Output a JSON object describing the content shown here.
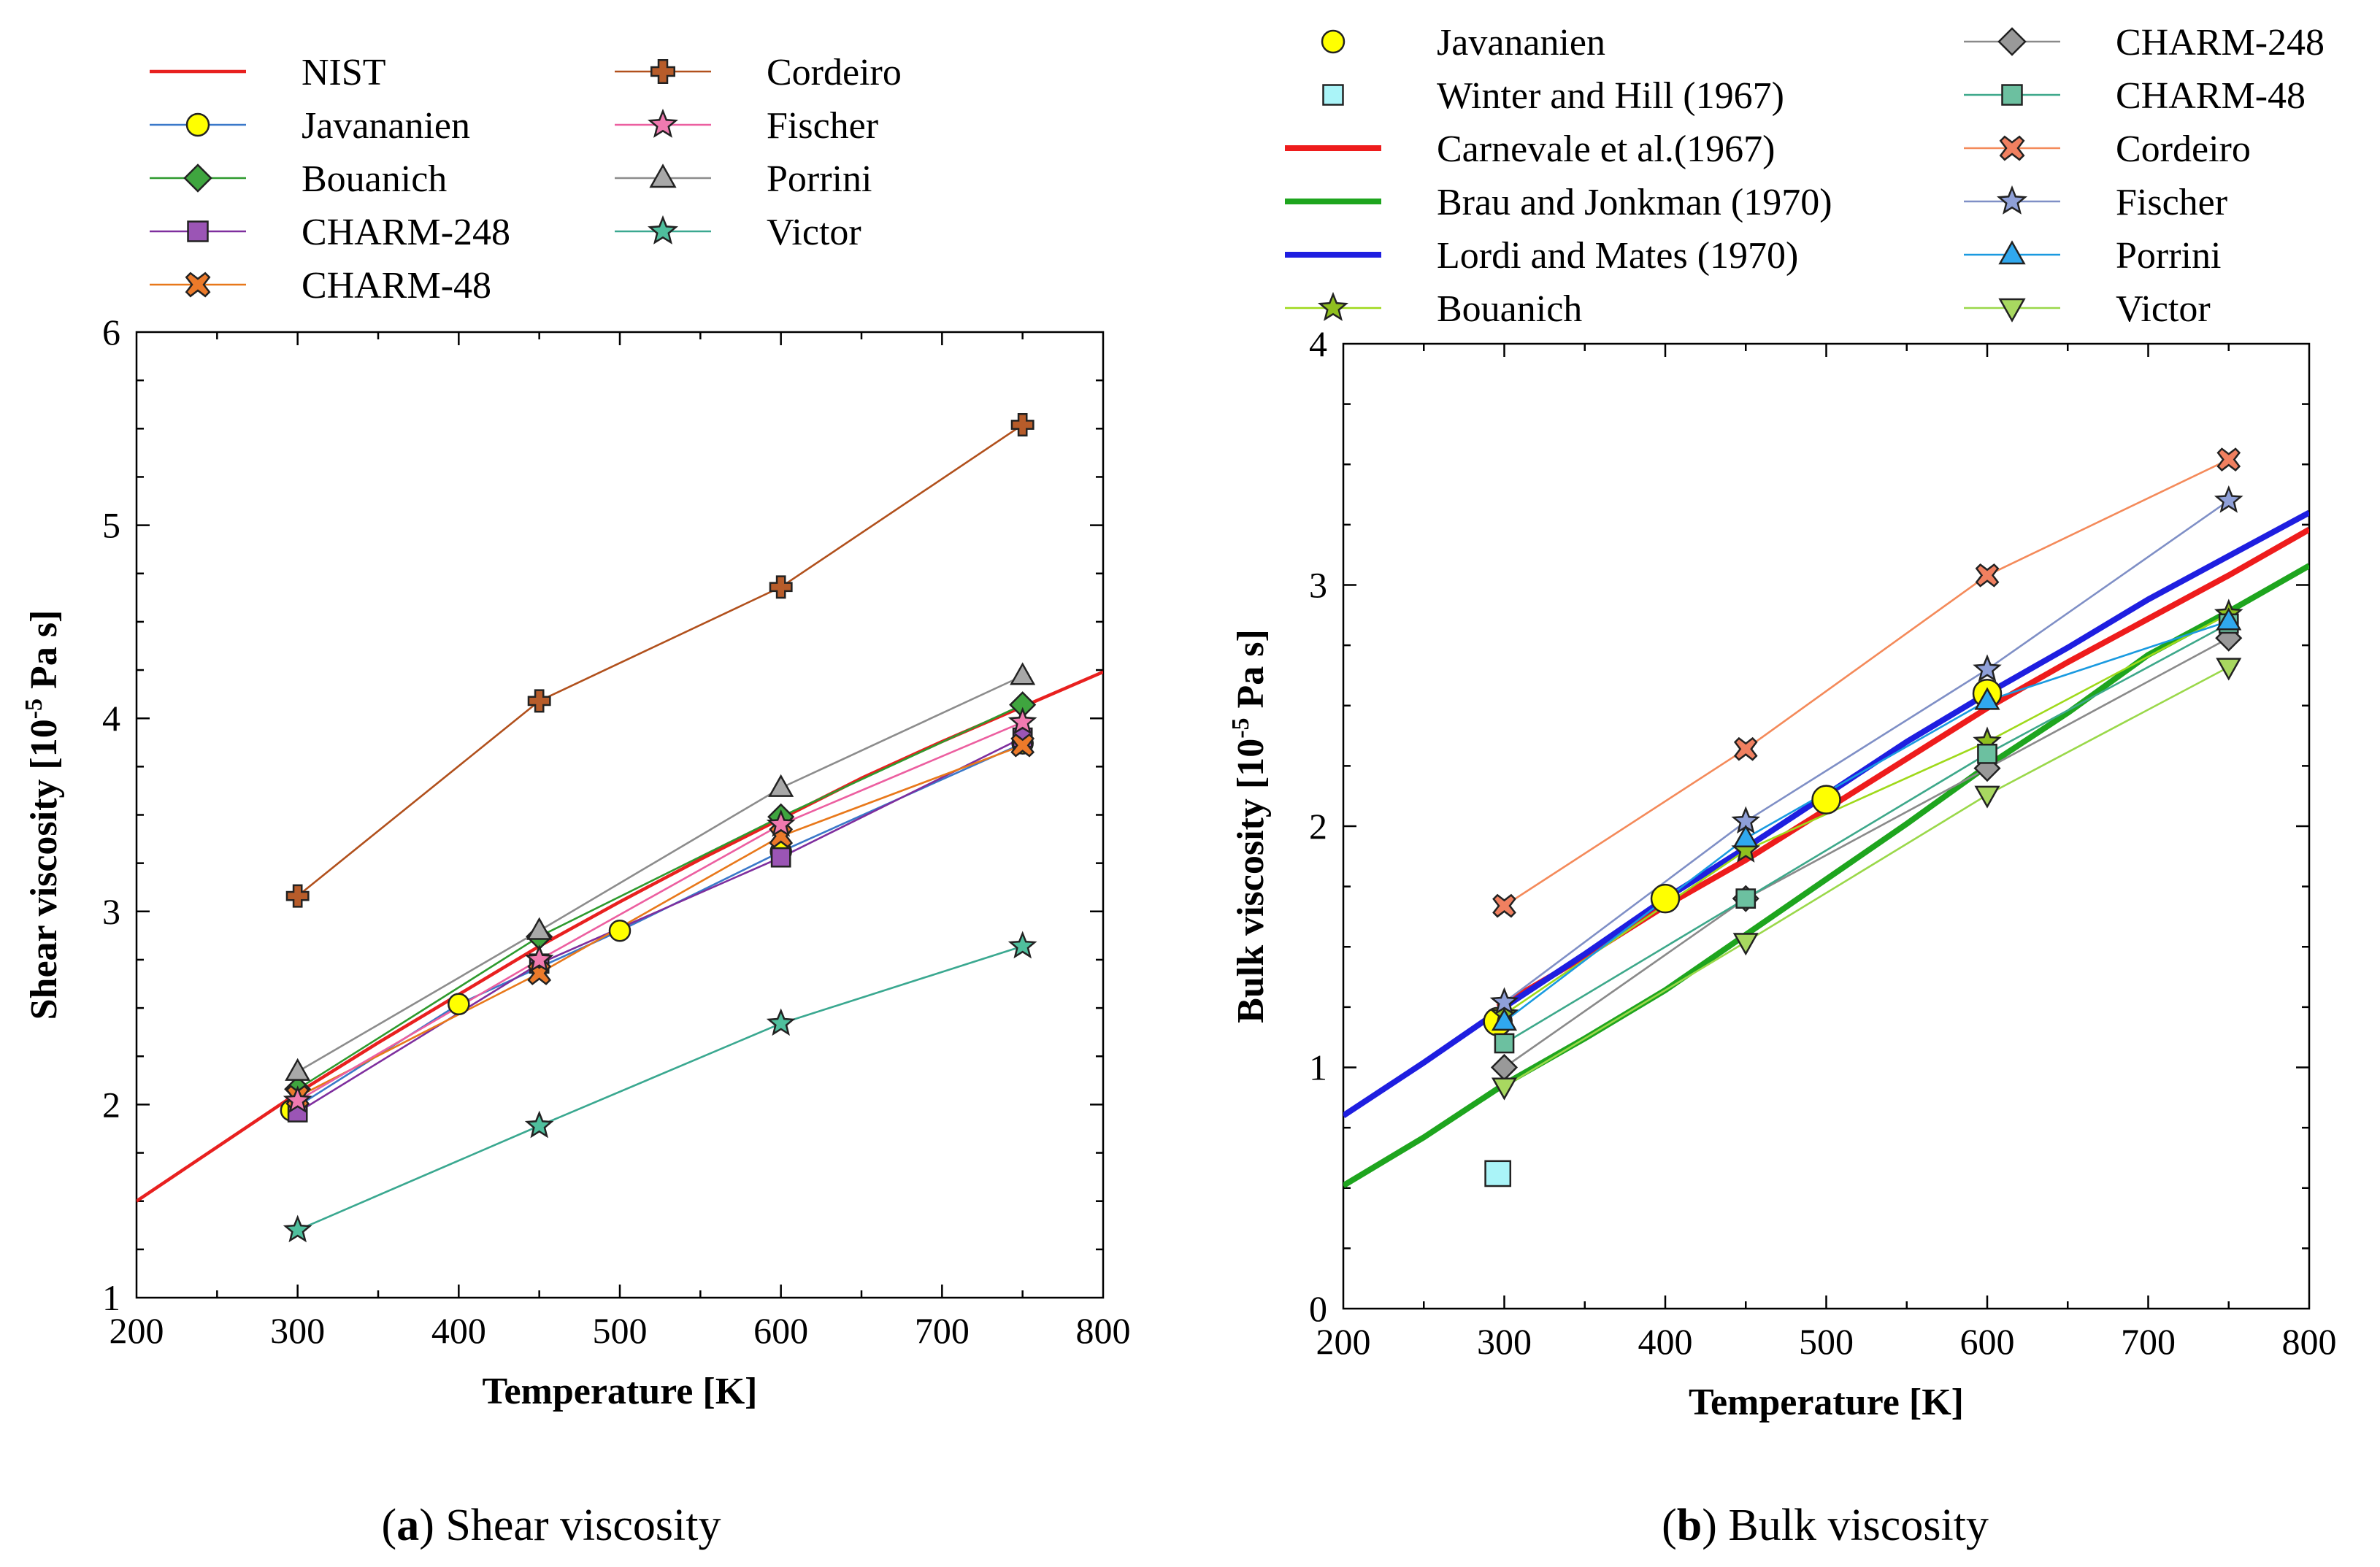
{
  "chart_data": [
    {
      "type": "line",
      "panel_label": "a",
      "caption": "Shear viscosity",
      "xlabel": "Temperature [K]",
      "ylabel": {
        "prefix": "Shear viscosity [10",
        "exponent": "-5",
        "suffix": " Pa s]"
      },
      "xlim": [
        200,
        800
      ],
      "ylim": [
        1,
        6
      ],
      "xticks": [
        200,
        300,
        400,
        500,
        600,
        700,
        800
      ],
      "yticks": [
        1,
        2,
        3,
        4,
        5,
        6
      ],
      "legend_columns": 2,
      "series": [
        {
          "name": "NIST",
          "color": "#e8201f",
          "marker": "none",
          "line_weight": "medium",
          "x": [
            200,
            250,
            300,
            350,
            400,
            450,
            500,
            550,
            600,
            650,
            700,
            750,
            800
          ],
          "y": [
            1.5,
            1.78,
            2.06,
            2.32,
            2.57,
            2.82,
            3.05,
            3.27,
            3.48,
            3.69,
            3.88,
            4.06,
            4.24
          ]
        },
        {
          "name": "Javananien",
          "color": "#3a78c9",
          "marker": "circle",
          "marker_fill": "#ffff00",
          "x": [
            296,
            400,
            500,
            600,
            750
          ],
          "y": [
            1.97,
            2.52,
            2.9,
            3.31,
            3.87
          ]
        },
        {
          "name": "Bouanich",
          "color": "#2e9a2e",
          "marker": "diamond",
          "marker_fill": "#3fa53f",
          "x": [
            300,
            450,
            600,
            750
          ],
          "y": [
            2.08,
            2.87,
            3.49,
            4.07
          ]
        },
        {
          "name": "CHARM-248",
          "color": "#7e2e9e",
          "marker": "square",
          "marker_fill": "#9b55b5",
          "x": [
            300,
            450,
            600,
            750
          ],
          "y": [
            1.96,
            2.73,
            3.28,
            3.9
          ]
        },
        {
          "name": "CHARM-48",
          "color": "#e8781a",
          "marker": "x",
          "marker_fill": "#ec7a2a",
          "x": [
            300,
            450,
            600,
            750
          ],
          "y": [
            2.04,
            2.68,
            3.39,
            3.86
          ]
        },
        {
          "name": "Cordeiro",
          "color": "#b1501c",
          "marker": "plus",
          "marker_fill": "#b75c2a",
          "x": [
            300,
            450,
            600,
            750
          ],
          "y": [
            3.08,
            4.09,
            4.68,
            5.52
          ]
        },
        {
          "name": "Fischer",
          "color": "#ec5fa0",
          "marker": "star",
          "marker_fill": "#f07ab0",
          "x": [
            300,
            450,
            600,
            750
          ],
          "y": [
            2.02,
            2.75,
            3.45,
            3.98
          ]
        },
        {
          "name": "Porrini",
          "color": "#8c8c8c",
          "marker": "triangle-up",
          "marker_fill": "#a8a8a8",
          "x": [
            300,
            450,
            600,
            750
          ],
          "y": [
            2.17,
            2.9,
            3.64,
            4.22
          ]
        },
        {
          "name": "Victor",
          "color": "#3aa890",
          "marker": "star",
          "marker_fill": "#4fbf9d",
          "x": [
            300,
            450,
            600,
            750
          ],
          "y": [
            1.35,
            1.89,
            2.42,
            2.82
          ]
        }
      ]
    },
    {
      "type": "line",
      "panel_label": "b",
      "caption": "Bulk viscosity",
      "xlabel": "Temperature [K]",
      "ylabel": {
        "prefix": "Bulk viscosity [10",
        "exponent": "-5",
        "suffix": " Pa s]"
      },
      "xlim": [
        200,
        800
      ],
      "ylim": [
        0,
        4
      ],
      "xticks": [
        200,
        300,
        400,
        500,
        600,
        700,
        800
      ],
      "yticks": [
        0,
        1,
        2,
        3,
        4
      ],
      "legend_columns": 2,
      "series": [
        {
          "name": "Javananien",
          "color": "#d8d800",
          "marker": "circle",
          "marker_fill": "#ffff00",
          "line": false,
          "marker_size": "large",
          "x": [
            296,
            400,
            500,
            600
          ],
          "y": [
            1.19,
            1.7,
            2.11,
            2.55
          ]
        },
        {
          "name": "Winter and Hill (1967)",
          "color": "#2aa8b8",
          "marker": "square",
          "marker_fill": "#aaf4f8",
          "line": false,
          "marker_size": "large",
          "x": [
            296
          ],
          "y": [
            0.56
          ]
        },
        {
          "name": "Carnevale et al.(1967)",
          "color": "#ee1c1c",
          "marker": "none",
          "line_weight": "thick",
          "x": [
            296,
            350,
            400,
            450,
            500,
            550,
            600,
            650,
            700,
            750,
            800
          ],
          "y": [
            1.25,
            1.46,
            1.67,
            1.86,
            2.07,
            2.28,
            2.49,
            2.68,
            2.86,
            3.04,
            3.23
          ]
        },
        {
          "name": "Brau and Jonkman (1970)",
          "color": "#1ea51e",
          "marker": "none",
          "line_weight": "thick",
          "x": [
            200,
            250,
            300,
            350,
            400,
            450,
            500,
            550,
            600,
            650,
            700,
            750,
            800
          ],
          "y": [
            0.51,
            0.71,
            0.93,
            1.12,
            1.32,
            1.55,
            1.78,
            2.01,
            2.25,
            2.47,
            2.71,
            2.89,
            3.08
          ]
        },
        {
          "name": "Lordi and Mates (1970)",
          "color": "#1e1ee0",
          "marker": "none",
          "line_weight": "thick",
          "x": [
            200,
            250,
            300,
            350,
            400,
            450,
            500,
            550,
            600,
            650,
            700,
            750,
            800
          ],
          "y": [
            0.8,
            1.02,
            1.25,
            1.47,
            1.7,
            1.91,
            2.13,
            2.35,
            2.55,
            2.74,
            2.94,
            3.12,
            3.3
          ]
        },
        {
          "name": "Bouanich",
          "color": "#9fd91a",
          "marker": "star",
          "marker_fill": "#8fbf1f",
          "x": [
            300,
            450,
            600,
            750
          ],
          "y": [
            1.22,
            1.9,
            2.35,
            2.88
          ]
        },
        {
          "name": "CHARM-248",
          "color": "#8a8a8a",
          "marker": "diamond",
          "marker_fill": "#999999",
          "x": [
            300,
            450,
            600,
            750
          ],
          "y": [
            1.0,
            1.7,
            2.24,
            2.78
          ]
        },
        {
          "name": "CHARM-48",
          "color": "#3da88a",
          "marker": "square",
          "marker_fill": "#6cc0a0",
          "x": [
            300,
            450,
            600,
            750
          ],
          "y": [
            1.1,
            1.7,
            2.3,
            2.84
          ]
        },
        {
          "name": "Cordeiro",
          "color": "#f48a5a",
          "marker": "x",
          "marker_fill": "#f08060",
          "x": [
            300,
            450,
            600,
            750
          ],
          "y": [
            1.67,
            2.32,
            3.04,
            3.52
          ]
        },
        {
          "name": "Fischer",
          "color": "#7f8fc6",
          "marker": "star",
          "marker_fill": "#8fa0d8",
          "x": [
            300,
            450,
            600,
            750
          ],
          "y": [
            1.27,
            2.02,
            2.65,
            3.35
          ]
        },
        {
          "name": "Porrini",
          "color": "#1a9ae0",
          "marker": "triangle-up",
          "marker_fill": "#30a8ee",
          "x": [
            300,
            450,
            600,
            750
          ],
          "y": [
            1.19,
            1.95,
            2.52,
            2.85
          ]
        },
        {
          "name": "Victor",
          "color": "#9ad84a",
          "marker": "triangle-down",
          "marker_fill": "#a8d860",
          "x": [
            300,
            450,
            600,
            750
          ],
          "y": [
            0.92,
            1.52,
            2.13,
            2.66
          ]
        }
      ]
    }
  ]
}
